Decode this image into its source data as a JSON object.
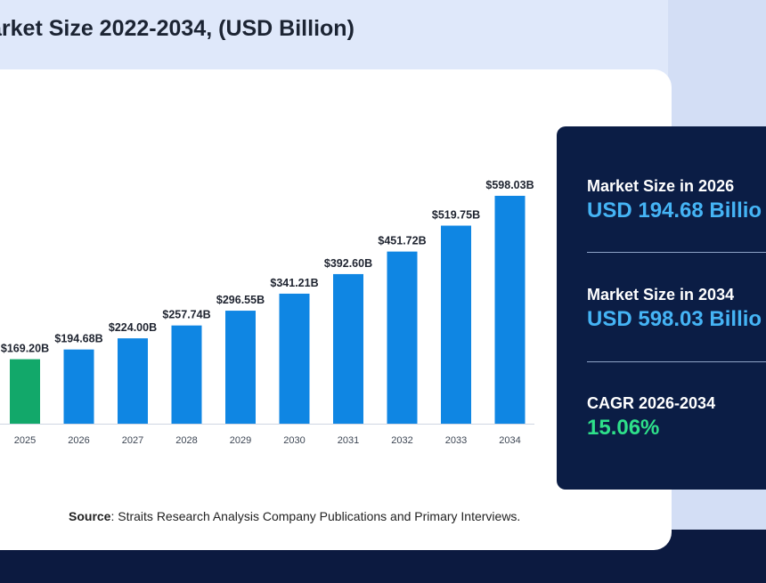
{
  "title": "arket Size 2022-2034, (USD Billion)",
  "source": {
    "label": "Source",
    "text": ": Straits Research Analysis Company Publications and Primary Interviews."
  },
  "panel": {
    "stats": [
      {
        "label": "Market Size in 2026",
        "value": "USD 194.68 Billio"
      },
      {
        "label": "Market Size in 2034",
        "value": "USD 598.03 Billio"
      },
      {
        "label": "CAGR 2026-2034",
        "value": "15.06%"
      }
    ],
    "colors": {
      "background": "#0b1d45",
      "value": "#45b4f5",
      "cagr": "#2ee08a"
    }
  },
  "chart_data": {
    "type": "bar",
    "categories": [
      "2025",
      "2026",
      "2027",
      "2028",
      "2029",
      "2030",
      "2031",
      "2032",
      "2033",
      "2034"
    ],
    "values": [
      169.2,
      194.68,
      224.0,
      257.74,
      296.55,
      341.21,
      392.6,
      451.72,
      519.75,
      598.03
    ],
    "data_labels": [
      "$169.20B",
      "$194.68B",
      "$224.00B",
      "$257.74B",
      "$296.55B",
      "$341.21B",
      "$392.60B",
      "$451.72B",
      "$519.75B",
      "$598.03B"
    ],
    "highlight_category": "2025",
    "colors": {
      "bar": "#0f86e3",
      "highlight": "#12a86a",
      "axis": "#cfd6e2"
    },
    "ylim": [
      0,
      598.03
    ],
    "grid": false,
    "legend": "none"
  }
}
